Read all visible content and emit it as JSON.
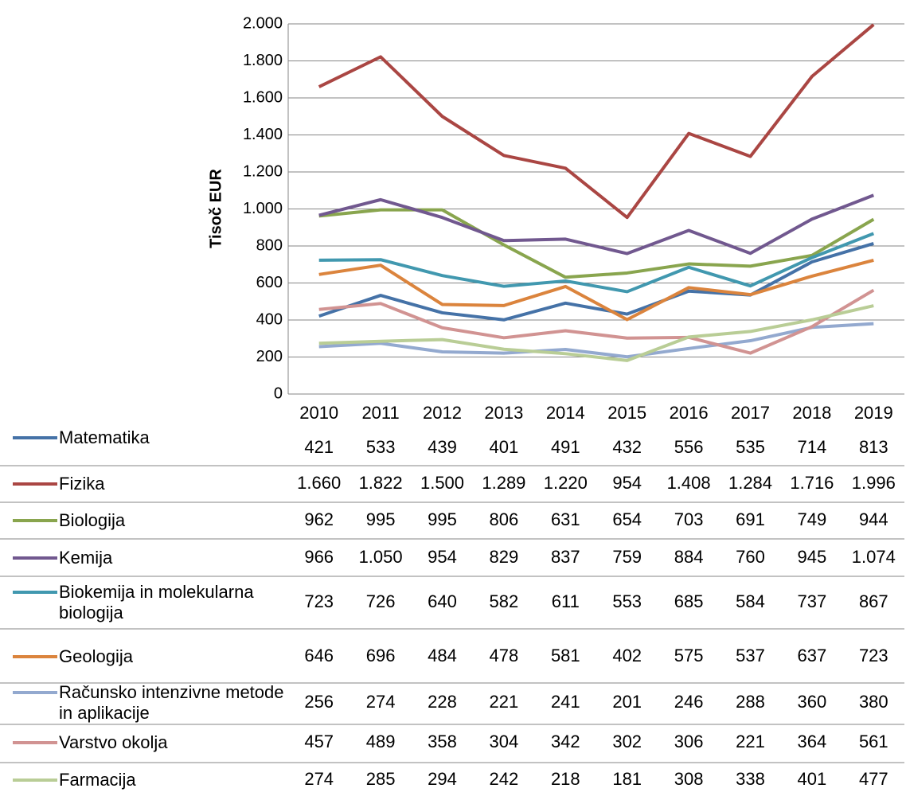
{
  "chart_data": {
    "type": "line",
    "ylabel": "Tisoč EUR",
    "categories": [
      "2010",
      "2011",
      "2012",
      "2013",
      "2014",
      "2015",
      "2016",
      "2017",
      "2018",
      "2019"
    ],
    "ylim": [
      0,
      2000
    ],
    "yticks": [
      0,
      200,
      400,
      600,
      800,
      {
        "value": 1000,
        "label": "1.000"
      },
      {
        "value": 1200,
        "label": "1.200"
      },
      {
        "value": 1400,
        "label": "1.400"
      },
      {
        "value": 1600,
        "label": "1.600"
      },
      {
        "value": 1800,
        "label": "1.800"
      },
      {
        "value": 2000,
        "label": "2.000"
      }
    ],
    "grid": true,
    "series": [
      {
        "name": "Matematika",
        "color": "#4572a7",
        "values": [
          421,
          533,
          439,
          401,
          491,
          432,
          556,
          535,
          714,
          813
        ]
      },
      {
        "name": "Fizika",
        "color": "#aa4643",
        "values": [
          1660,
          1822,
          1500,
          1289,
          1220,
          954,
          1408,
          1284,
          1716,
          1996
        ],
        "value_labels": [
          "1.660",
          "1.822",
          "1.500",
          "1.289",
          "1.220",
          "954",
          "1.408",
          "1.284",
          "1.716",
          "1.996"
        ]
      },
      {
        "name": "Biologija",
        "color": "#89a54e",
        "values": [
          962,
          995,
          995,
          806,
          631,
          654,
          703,
          691,
          749,
          944
        ]
      },
      {
        "name": "Kemija",
        "color": "#71588f",
        "values": [
          966,
          1050,
          954,
          829,
          837,
          759,
          884,
          760,
          945,
          1074
        ],
        "value_labels": [
          "966",
          "1.050",
          "954",
          "829",
          "837",
          "759",
          "884",
          "760",
          "945",
          "1.074"
        ]
      },
      {
        "name": "Biokemija in molekularna biologija",
        "color": "#4198af",
        "values": [
          723,
          726,
          640,
          582,
          611,
          553,
          685,
          584,
          737,
          867
        ]
      },
      {
        "name": "Geologija",
        "color": "#db843d",
        "values": [
          646,
          696,
          484,
          478,
          581,
          402,
          575,
          537,
          637,
          723
        ]
      },
      {
        "name": "Računsko intenzivne metode in aplikacije",
        "color": "#93a9cf",
        "values": [
          256,
          274,
          228,
          221,
          241,
          201,
          246,
          288,
          360,
          380
        ]
      },
      {
        "name": "Varstvo okolja",
        "color": "#d19392",
        "values": [
          457,
          489,
          358,
          304,
          342,
          302,
          306,
          221,
          364,
          561
        ]
      },
      {
        "name": "Farmacija",
        "color": "#b9cd96",
        "values": [
          274,
          285,
          294,
          242,
          218,
          181,
          308,
          338,
          401,
          477
        ]
      }
    ]
  }
}
